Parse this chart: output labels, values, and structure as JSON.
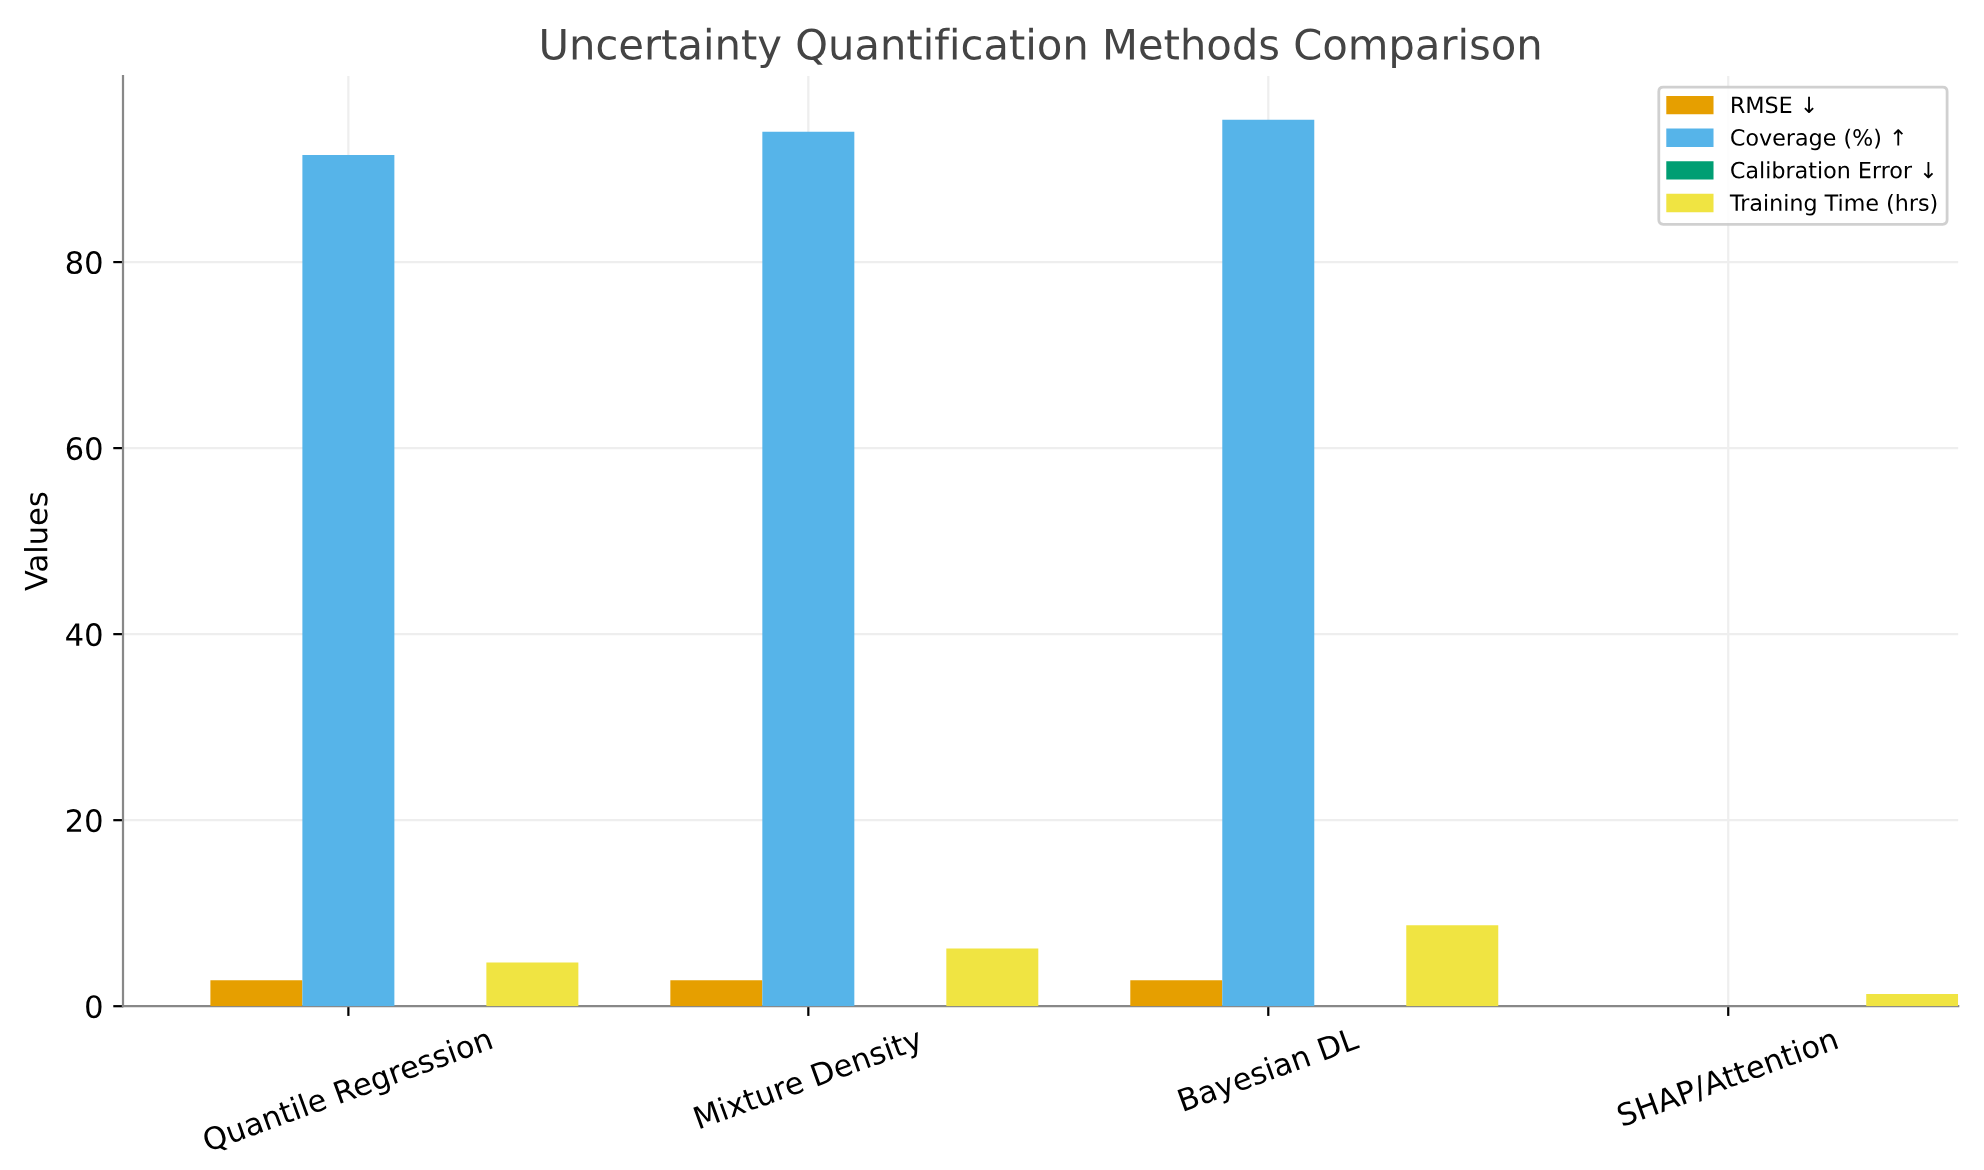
{
  "chart_data": {
    "type": "bar",
    "title": "Uncertainty Quantification Methods Comparison",
    "ylabel": "Values",
    "categories": [
      "Quantile Regression",
      "Mixture Density",
      "Bayesian DL",
      "SHAP/Attention"
    ],
    "series": [
      {
        "name": "RMSE ↓",
        "color": "#e69f00",
        "values": [
          2.8,
          2.8,
          2.8,
          null
        ]
      },
      {
        "name": "Coverage (%) ↑",
        "color": "#56b4e9",
        "values": [
          91.5,
          94,
          95.3,
          null
        ]
      },
      {
        "name": "Calibration Error ↓",
        "color": "#009e73",
        "values": [
          0,
          0,
          0,
          null
        ]
      },
      {
        "name": "Training Time (hrs)",
        "color": "#f0e442",
        "values": [
          4.7,
          6.2,
          8.7,
          1.3
        ]
      }
    ],
    "ylim": [
      0,
      100
    ],
    "yticks": [
      0,
      20,
      40,
      60,
      80
    ],
    "grid": true,
    "legend": "top right"
  }
}
